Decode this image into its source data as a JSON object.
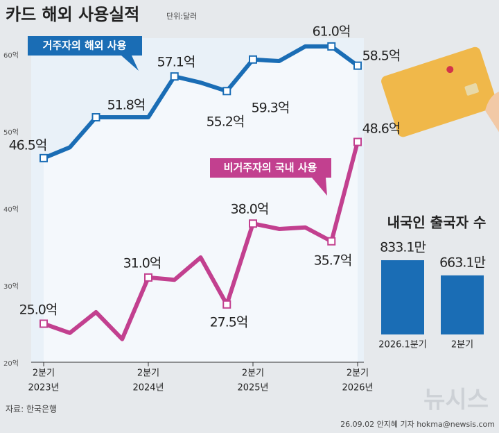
{
  "chart_data": [
    {
      "type": "line",
      "title": "카드 해외 사용실적",
      "subtitle": "단위:달러",
      "source": "자료: 한국은행",
      "credit": "26.09.02 안지혜 기자 hokma@newsis.com",
      "watermark": "뉴시스",
      "categories": [
        {
          "quarter": "2분기",
          "year": "2023년"
        },
        null,
        null,
        null,
        {
          "quarter": "2분기",
          "year": "2024년"
        },
        null,
        null,
        null,
        {
          "quarter": "2분기",
          "year": "2025년"
        },
        null,
        null,
        null,
        {
          "quarter": "2분기",
          "year": "2026년"
        }
      ],
      "ylim": [
        20,
        60
      ],
      "yticks": [
        {
          "value": 20,
          "label": "20억"
        },
        {
          "value": 30,
          "label": "30억"
        },
        {
          "value": 40,
          "label": "40억"
        },
        {
          "value": 50,
          "label": "50억"
        },
        {
          "value": 60,
          "label": "60억"
        }
      ],
      "series": [
        {
          "name": "거주자의 해외 사용",
          "color": "#1a6db5",
          "values": [
            46.5,
            47.9,
            51.8,
            51.8,
            51.8,
            57.1,
            56.3,
            55.2,
            59.3,
            59.1,
            61.0,
            61.0,
            58.5
          ],
          "value_labels": [
            "46.5억",
            null,
            "51.8억",
            null,
            null,
            "57.1억",
            null,
            "55.2억",
            "59.3억",
            null,
            null,
            "61.0억",
            "58.5억"
          ]
        },
        {
          "name": "비거주자의 국내 사용",
          "color": "#c2408f",
          "values": [
            25.0,
            23.8,
            26.5,
            23.0,
            31.0,
            30.7,
            33.6,
            27.5,
            38.0,
            37.3,
            37.5,
            35.7,
            48.6
          ],
          "value_labels": [
            "25.0억",
            null,
            null,
            null,
            "31.0억",
            null,
            null,
            "27.5억",
            "38.0억",
            null,
            null,
            "35.7억",
            "48.6억"
          ]
        }
      ]
    },
    {
      "type": "bar",
      "title": "내국인 출국자 수",
      "categories": [
        "2026.1분기",
        "2분기"
      ],
      "values": [
        833.1,
        663.1
      ],
      "value_labels": [
        "833.1만",
        "663.1만"
      ],
      "color": "#1a6db5"
    }
  ]
}
